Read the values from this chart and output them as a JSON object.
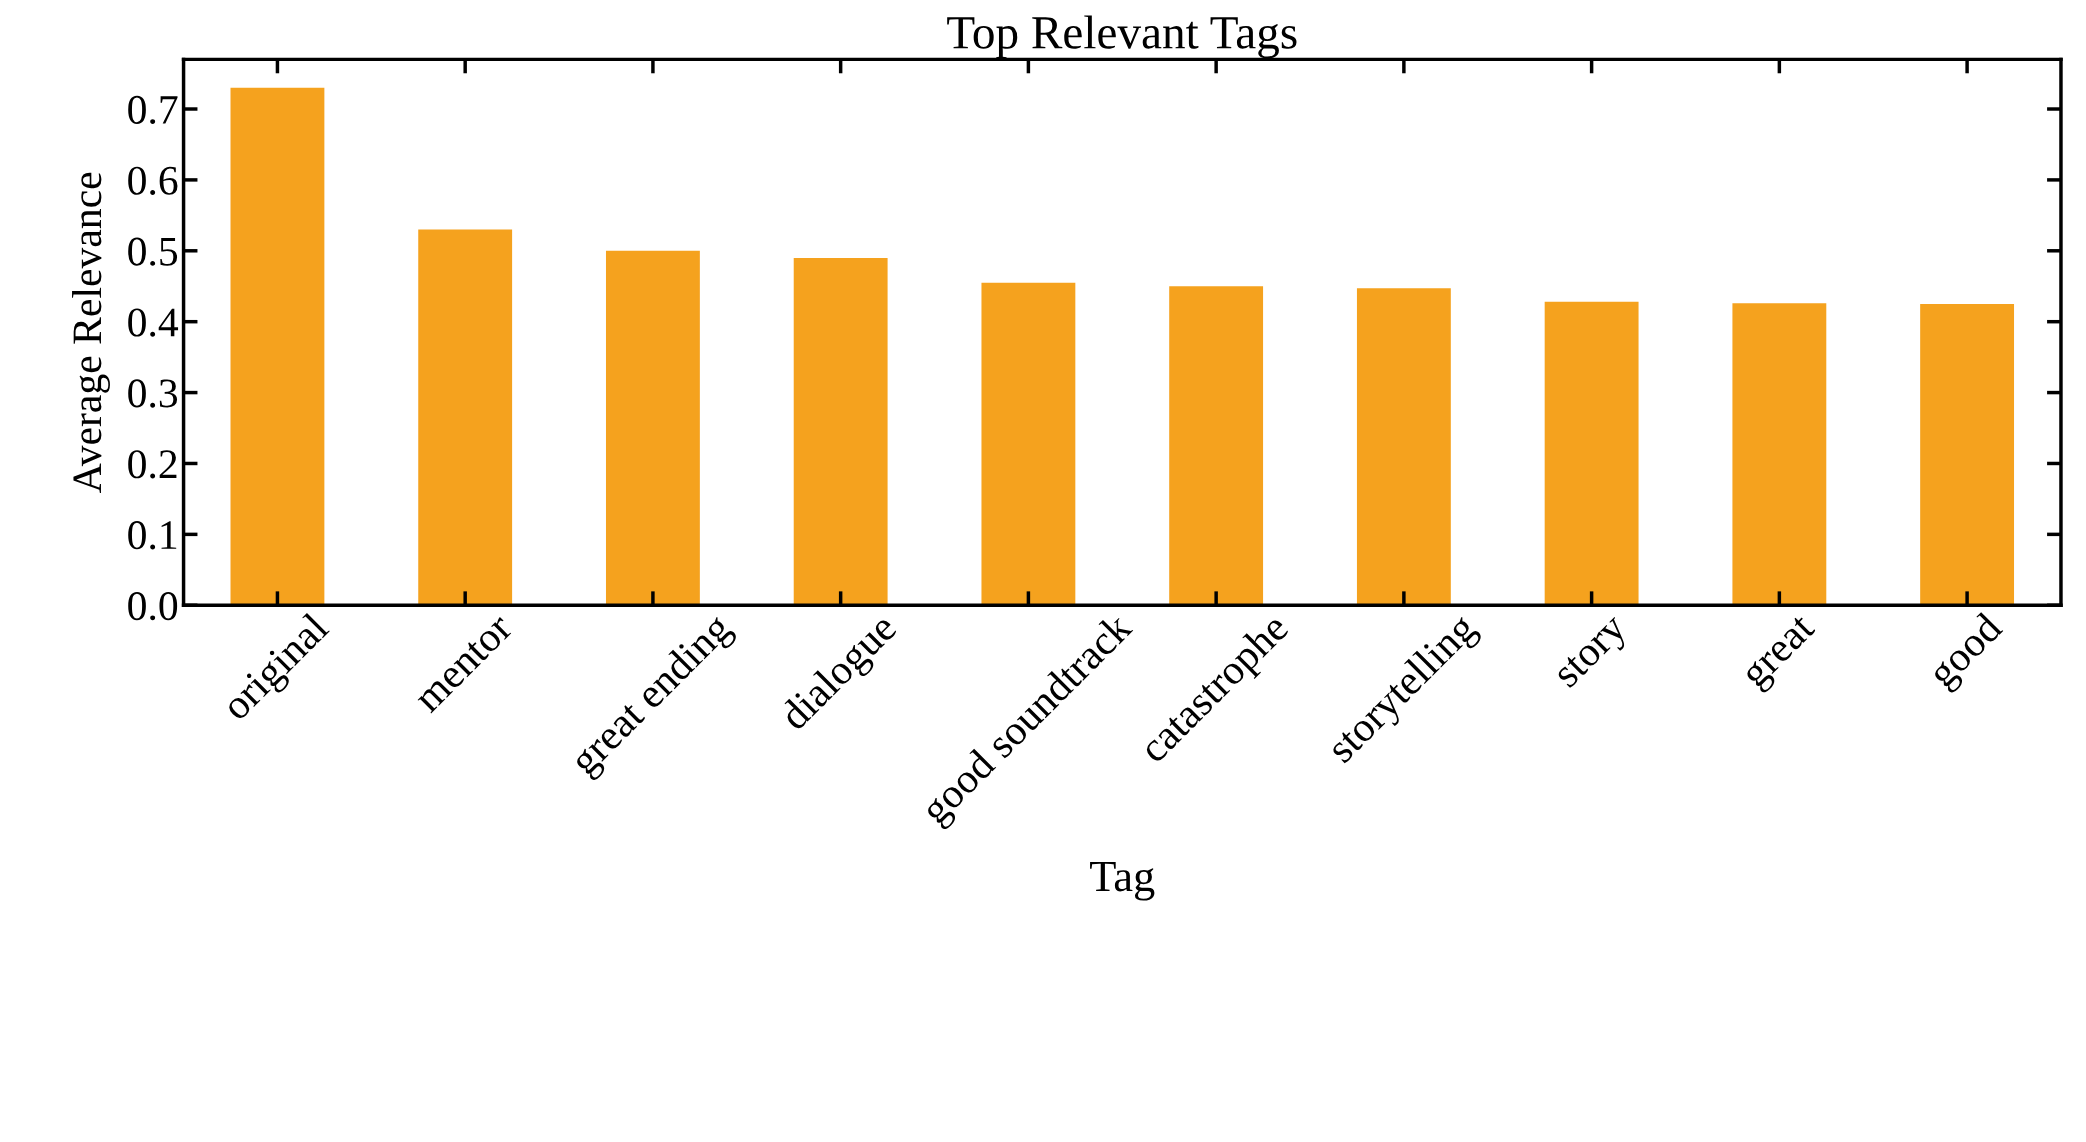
{
  "chart_data": {
    "type": "bar",
    "title": "Top Relevant Tags",
    "xlabel": "Tag",
    "ylabel": "Average Relevance",
    "categories": [
      "original",
      "mentor",
      "great ending",
      "dialogue",
      "good soundtrack",
      "catastrophe",
      "storytelling",
      "story",
      "great",
      "good"
    ],
    "values": [
      0.73,
      0.53,
      0.5,
      0.49,
      0.455,
      0.45,
      0.447,
      0.428,
      0.426,
      0.425
    ],
    "color": "#f5a21e",
    "ylim": [
      0,
      0.77
    ],
    "yticks": [
      {
        "value": 0,
        "label": "0.0"
      },
      0.1,
      0.2,
      0.3,
      0.4,
      0.5,
      0.6,
      0.7
    ],
    "grid": false,
    "legend": false
  }
}
